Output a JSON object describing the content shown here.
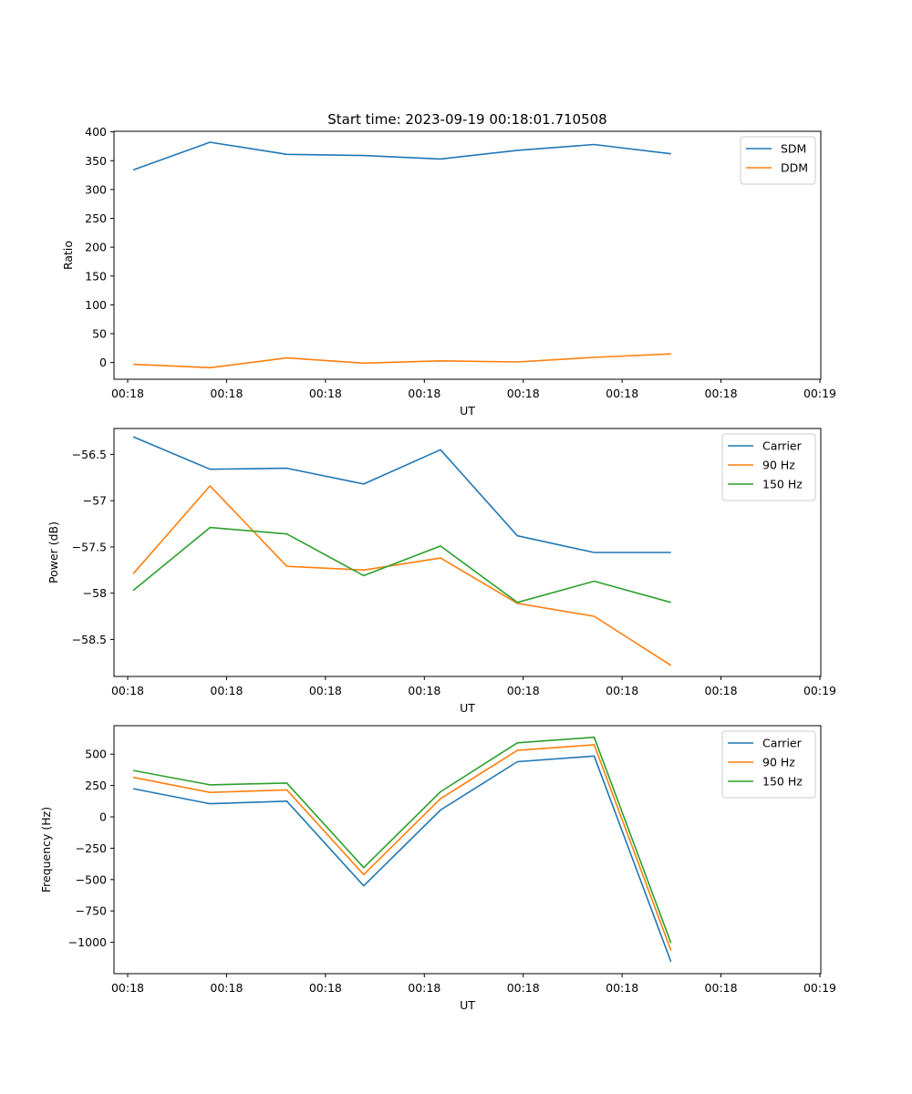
{
  "chart_data": [
    {
      "type": "line",
      "title": "Start time: 2023-09-19 00:18:01.710508",
      "xlabel": "UT",
      "ylabel": "Ratio",
      "xticks": [
        "00:18",
        "00:18",
        "00:18",
        "00:18",
        "00:18",
        "00:18",
        "00:18",
        "00:19"
      ],
      "x": [
        1,
        2,
        3,
        4,
        5,
        6,
        7,
        8
      ],
      "xlim": [
        0.75,
        9.95
      ],
      "ylim": [
        -29,
        401
      ],
      "yticks": [
        0,
        50,
        100,
        150,
        200,
        250,
        300,
        350,
        400
      ],
      "legend_position": "top-right",
      "series": [
        {
          "name": "SDM",
          "color": "#1f77b4",
          "values": [
            334,
            382,
            361,
            359,
            353,
            368,
            378,
            362
          ]
        },
        {
          "name": "DDM",
          "color": "#ff7f0e",
          "values": [
            -3,
            -9,
            8,
            -1,
            3,
            1,
            9,
            15
          ]
        }
      ]
    },
    {
      "type": "line",
      "title": "",
      "xlabel": "UT",
      "ylabel": "Power (dB)",
      "xticks": [
        "00:18",
        "00:18",
        "00:18",
        "00:18",
        "00:18",
        "00:18",
        "00:18",
        "00:19"
      ],
      "x": [
        1,
        2,
        3,
        4,
        5,
        6,
        7,
        8
      ],
      "xlim": [
        0.75,
        9.95
      ],
      "ylim": [
        -58.9,
        -56.22
      ],
      "yticks": [
        -56.5,
        -57.0,
        -57.5,
        -58.0,
        -58.5
      ],
      "legend_position": "top-right",
      "series": [
        {
          "name": "Carrier",
          "color": "#1f77b4",
          "values": [
            -56.31,
            -56.66,
            -56.65,
            -56.82,
            -56.45,
            -57.38,
            -57.56,
            -57.56
          ]
        },
        {
          "name": "90 Hz",
          "color": "#ff7f0e",
          "values": [
            -57.79,
            -56.84,
            -57.71,
            -57.75,
            -57.62,
            -58.11,
            -58.25,
            -58.78
          ]
        },
        {
          "name": "150 Hz",
          "color": "#2ca02c",
          "values": [
            -57.97,
            -57.29,
            -57.36,
            -57.81,
            -57.49,
            -58.1,
            -57.87,
            -58.1
          ]
        }
      ]
    },
    {
      "type": "line",
      "title": "",
      "xlabel": "UT",
      "ylabel": "Frequency (Hz)",
      "xticks": [
        "00:18",
        "00:18",
        "00:18",
        "00:18",
        "00:18",
        "00:18",
        "00:18",
        "00:19"
      ],
      "x": [
        1,
        2,
        3,
        4,
        5,
        6,
        7,
        8
      ],
      "xlim": [
        0.75,
        9.95
      ],
      "ylim": [
        -1250,
        727
      ],
      "yticks": [
        500,
        250,
        0,
        -250,
        -500,
        -750,
        -1000
      ],
      "legend_position": "top-right",
      "series": [
        {
          "name": "Carrier",
          "color": "#1f77b4",
          "values": [
            225,
            105,
            125,
            -550,
            55,
            440,
            485,
            -1155
          ]
        },
        {
          "name": "90 Hz",
          "color": "#ff7f0e",
          "values": [
            315,
            195,
            215,
            -460,
            145,
            530,
            575,
            -1065
          ]
        },
        {
          "name": "150 Hz",
          "color": "#2ca02c",
          "values": [
            370,
            255,
            270,
            -405,
            200,
            590,
            635,
            -1005
          ]
        }
      ]
    }
  ]
}
